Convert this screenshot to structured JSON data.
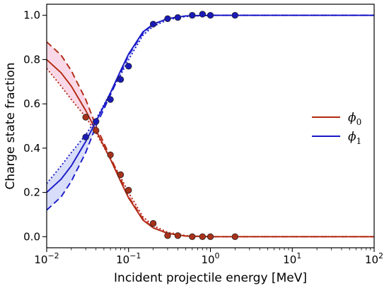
{
  "chart_data": {
    "type": "line",
    "xlabel": "Incident projectile energy [MeV]",
    "ylabel": "Charge state fraction",
    "xscale": "log",
    "xlim": [
      0.01,
      100
    ],
    "ylim": [
      -0.05,
      1.05
    ],
    "x_tick_labels": [
      {
        "base": "10",
        "exp": "−2",
        "value": 0.01
      },
      {
        "base": "10",
        "exp": "−1",
        "value": 0.1
      },
      {
        "base": "10",
        "exp": "0",
        "value": 1
      },
      {
        "base": "10",
        "exp": "1",
        "value": 10
      },
      {
        "base": "10",
        "exp": "2",
        "value": 100
      }
    ],
    "y_ticks": [
      0.0,
      0.2,
      0.4,
      0.6,
      0.8,
      1.0
    ],
    "y_tick_labels": [
      "0.0",
      "0.2",
      "0.4",
      "0.6",
      "0.8",
      "1.0"
    ],
    "legend": {
      "placement": "center-right",
      "entries": [
        {
          "base": "ϕ",
          "sub": "0",
          "color": "#b22a12"
        },
        {
          "base": "ϕ",
          "sub": "1",
          "color": "#1919c8"
        }
      ]
    },
    "series": [
      {
        "color": "#b22a12",
        "style": "solid",
        "x": [
          0.01,
          0.015,
          0.02,
          0.03,
          0.04,
          0.06,
          0.08,
          0.1,
          0.15,
          0.2,
          0.3,
          0.5,
          1,
          2,
          5,
          10,
          100
        ],
        "y": [
          0.8,
          0.74,
          0.68,
          0.57,
          0.48,
          0.35,
          0.25,
          0.175,
          0.075,
          0.04,
          0.015,
          0.003,
          0.0,
          0.0,
          0.0,
          0.0,
          0.0
        ]
      },
      {
        "color": "#b22a12",
        "style": "dashed",
        "x": [
          0.01,
          0.015,
          0.02,
          0.03,
          0.04,
          0.06,
          0.08,
          0.1,
          0.15,
          0.2,
          0.3,
          0.5,
          1,
          2,
          5,
          10,
          100
        ],
        "y": [
          0.88,
          0.82,
          0.75,
          0.62,
          0.5,
          0.36,
          0.26,
          0.18,
          0.08,
          0.04,
          0.015,
          0.003,
          0.0,
          0.0,
          0.0,
          0.0,
          0.0
        ]
      },
      {
        "color": "#b22a12",
        "style": "dotted",
        "x": [
          0.01,
          0.015,
          0.02,
          0.03,
          0.04,
          0.06,
          0.08,
          0.1,
          0.15,
          0.2,
          0.3,
          0.5,
          1,
          2,
          5,
          10,
          100
        ],
        "y": [
          0.76,
          0.68,
          0.62,
          0.54,
          0.47,
          0.35,
          0.27,
          0.2,
          0.09,
          0.05,
          0.02,
          0.005,
          0.0,
          0.0,
          0.0,
          0.0,
          0.0
        ]
      },
      {
        "color": "#1919c8",
        "style": "solid",
        "x": [
          0.01,
          0.015,
          0.02,
          0.03,
          0.04,
          0.06,
          0.08,
          0.1,
          0.15,
          0.2,
          0.3,
          0.5,
          1,
          2,
          5,
          10,
          100
        ],
        "y": [
          0.2,
          0.26,
          0.32,
          0.43,
          0.52,
          0.65,
          0.75,
          0.825,
          0.925,
          0.96,
          0.985,
          0.997,
          1.0,
          1.0,
          1.0,
          1.0,
          1.0
        ]
      },
      {
        "color": "#1919c8",
        "style": "dashed",
        "x": [
          0.01,
          0.015,
          0.02,
          0.03,
          0.04,
          0.06,
          0.08,
          0.1,
          0.15,
          0.2,
          0.3,
          0.5,
          1,
          2,
          5,
          10,
          100
        ],
        "y": [
          0.12,
          0.18,
          0.25,
          0.38,
          0.5,
          0.64,
          0.74,
          0.82,
          0.92,
          0.96,
          0.985,
          0.997,
          1.0,
          1.0,
          1.0,
          1.0,
          1.0
        ]
      },
      {
        "color": "#1919c8",
        "style": "dotted",
        "x": [
          0.01,
          0.015,
          0.02,
          0.03,
          0.04,
          0.06,
          0.08,
          0.1,
          0.15,
          0.2,
          0.3,
          0.5,
          1,
          2,
          5,
          10,
          100
        ],
        "y": [
          0.24,
          0.32,
          0.38,
          0.46,
          0.53,
          0.65,
          0.73,
          0.8,
          0.91,
          0.95,
          0.98,
          0.995,
          1.0,
          1.0,
          1.0,
          1.0,
          1.0
        ]
      }
    ],
    "scatter": [
      {
        "color": "#a8321a",
        "x": [
          0.03,
          0.04,
          0.06,
          0.08,
          0.1,
          0.2,
          0.3,
          0.4,
          0.6,
          0.8,
          1.0,
          2.0
        ],
        "y": [
          0.54,
          0.48,
          0.37,
          0.28,
          0.21,
          0.06,
          0.005,
          0.005,
          0.0,
          0.0,
          0.0,
          0.0
        ]
      },
      {
        "color": "#1a1ab8",
        "x": [
          0.03,
          0.04,
          0.06,
          0.08,
          0.1,
          0.2,
          0.3,
          0.4,
          0.6,
          0.8,
          1.0,
          2.0
        ],
        "y": [
          0.45,
          0.52,
          0.62,
          0.71,
          0.77,
          0.96,
          0.985,
          0.99,
          1.0,
          1.005,
          1.0,
          1.0
        ]
      }
    ]
  }
}
